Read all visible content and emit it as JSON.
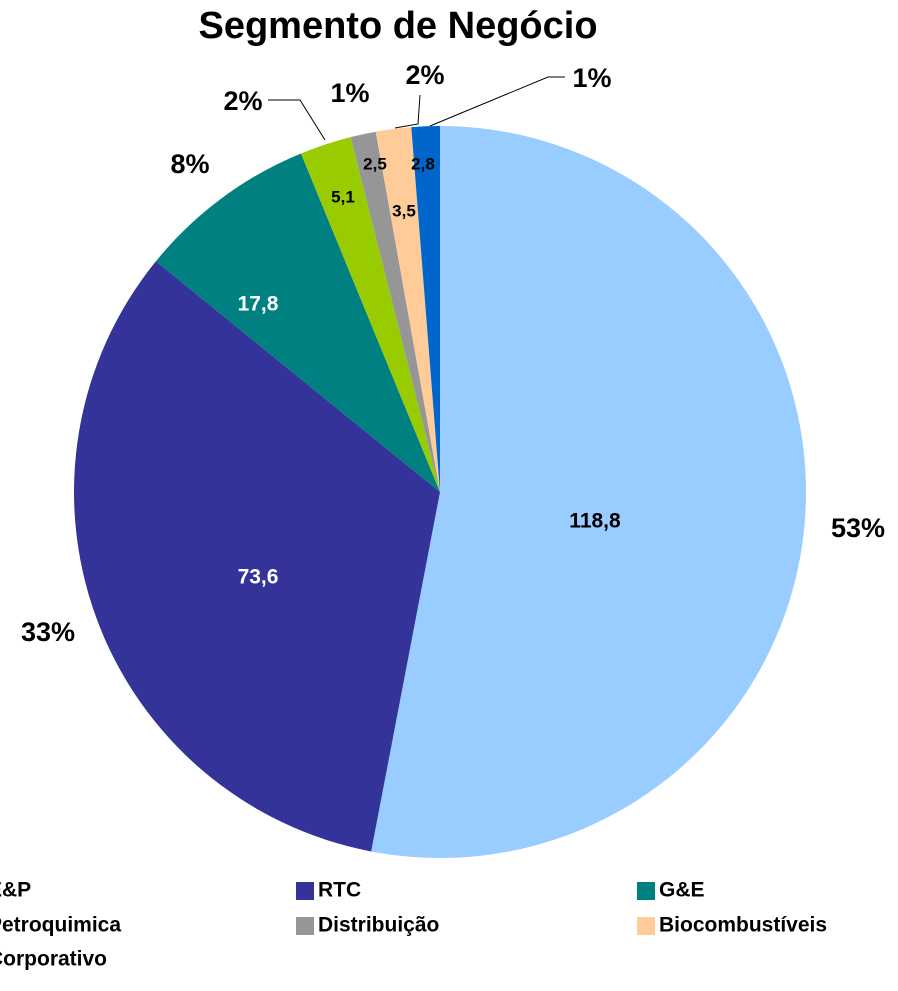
{
  "chart_data": {
    "type": "pie",
    "title": "Segmento de Negócio",
    "categories": [
      "E&P",
      "RTC",
      "G&E",
      "Petroquimica",
      "Distribuição",
      "Biocombustíveis",
      "Corporativo"
    ],
    "values": [
      118.8,
      73.6,
      17.8,
      5.1,
      2.5,
      3.5,
      2.8
    ],
    "value_labels": [
      "118,8",
      "73,6",
      "17,8",
      "5,1",
      "2,5",
      "3,5",
      "2,8"
    ],
    "percent_labels": [
      "53%",
      "33%",
      "8%",
      "2%",
      "1%",
      "2%",
      "1%"
    ],
    "colors": [
      "#99ccff",
      "#333399",
      "#008080",
      "#99cc00",
      "#969696",
      "#ffcc99",
      "#0066cc"
    ],
    "legend": "bottom"
  }
}
